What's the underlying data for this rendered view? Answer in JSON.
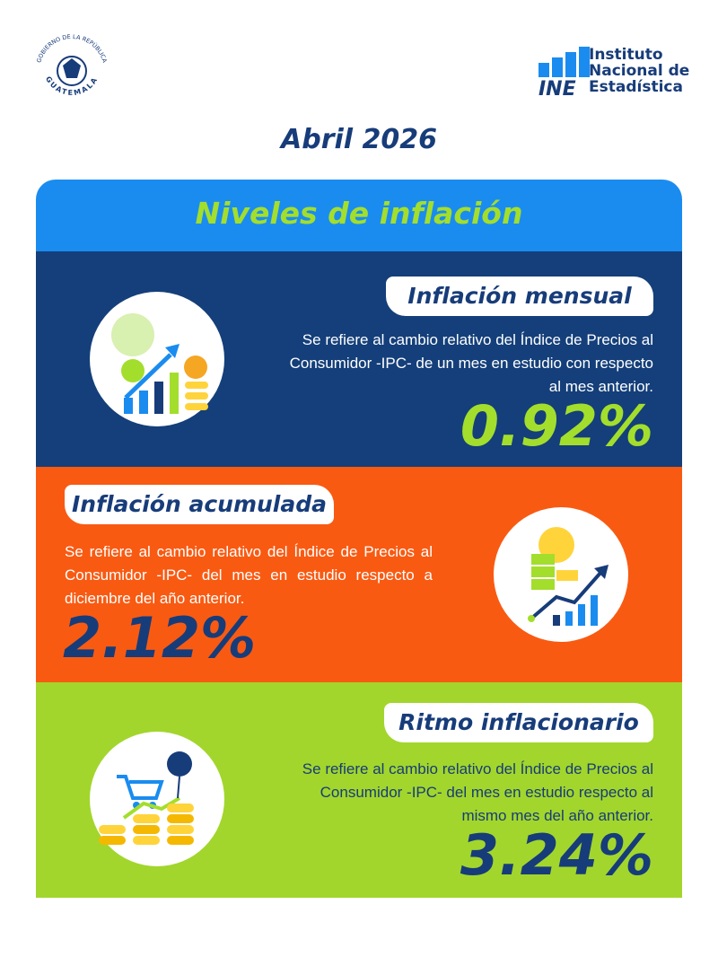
{
  "header": {
    "gov_seal": {
      "top": "GOBIERNO DE LA REPÚBLICA",
      "bottom": "GUATEMALA"
    },
    "ine": {
      "acronym": "INE",
      "lines": [
        "Instituto",
        "Nacional de",
        "Estadística"
      ]
    }
  },
  "date": "Abril 2026",
  "panel": {
    "title": "Niveles de inflación",
    "sections": [
      {
        "title": "Inflación mensual",
        "description": "Se refiere al cambio relativo del Índice de Precios al Consumidor -IPC- de un mes en estudio con respecto al mes anterior.",
        "value": "0.92%"
      },
      {
        "title": "Inflación acumulada",
        "description": "Se refiere al cambio relativo del Índice de Precios al Consumidor -IPC- del mes en estudio respecto a diciembre del año anterior.",
        "value": "2.12%"
      },
      {
        "title": "Ritmo inflacionario",
        "description": "Se refiere al cambio relativo del Índice de Precios al Consumidor -IPC- del mes en estudio respecto al mismo mes del año anterior.",
        "value": "3.24%"
      }
    ]
  }
}
